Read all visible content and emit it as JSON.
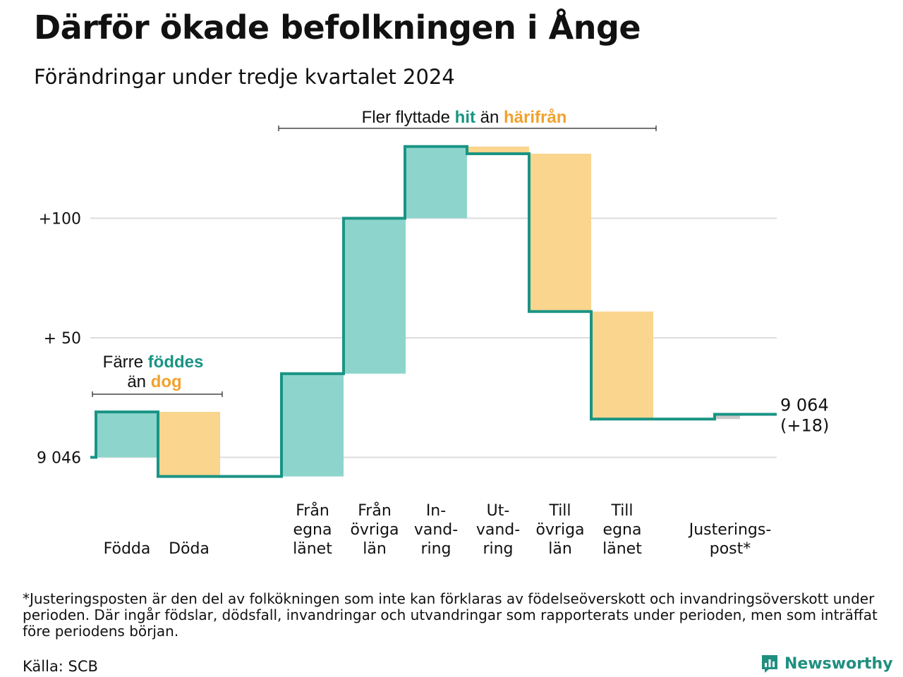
{
  "title": "Därför ökade befolkningen i Ånge",
  "subtitle": "Förändringar under tredje kvartalet 2024",
  "footnote": "*Justeringsposten är den del av folkökningen som inte kan förklaras av födelseöverskott och invandringsöverskott under perioden. Där ingår födslar, dödsfall, invandringar och utvandringar som rapporterats under perioden, men som inträffat före periodens början.",
  "source": "Källa: SCB",
  "brand": "Newsworthy",
  "colors": {
    "increase": "#8dd5cc",
    "decrease": "#f9d58d",
    "line": "#1a9484",
    "adjust": "#c8c8c8",
    "grid": "#dddddd",
    "teal_text": "#1a9484",
    "orange_text": "#f0a22e"
  },
  "annotations": {
    "natural": {
      "pre1": "Färre ",
      "hl1": "föddes",
      "pre2": "än ",
      "hl2": "dog"
    },
    "migration": {
      "pre1": "Fler flyttade ",
      "hl1": "hit",
      "pre2": " än ",
      "hl2": "härifrån"
    }
  },
  "chart_data": {
    "type": "waterfall",
    "base": 9046,
    "y_tick_labels": [
      "9 046",
      "+ 50",
      "+100"
    ],
    "y_ticks": [
      0,
      50,
      100
    ],
    "steps": [
      {
        "label_lines": [
          "Födda"
        ],
        "change": 19,
        "type": "increase"
      },
      {
        "label_lines": [
          "Döda"
        ],
        "change": -27,
        "type": "decrease"
      },
      {
        "label_lines": [
          "Från",
          "egna",
          "länet"
        ],
        "change": 43,
        "type": "increase"
      },
      {
        "label_lines": [
          "Från",
          "övriga",
          "län"
        ],
        "change": 65,
        "type": "increase"
      },
      {
        "label_lines": [
          "In-",
          "vand-",
          "ring"
        ],
        "change": 30,
        "type": "increase"
      },
      {
        "label_lines": [
          "Ut-",
          "vand-",
          "ring"
        ],
        "change": -3,
        "type": "decrease"
      },
      {
        "label_lines": [
          "Till",
          "övriga",
          "län"
        ],
        "change": -66,
        "type": "decrease"
      },
      {
        "label_lines": [
          "Till",
          "egna",
          "länet"
        ],
        "change": -45,
        "type": "decrease"
      },
      {
        "label_lines": [
          "Justerings-",
          "post*"
        ],
        "change": 2,
        "type": "adjust"
      }
    ],
    "end_total": "9 064",
    "end_change": "(+18)"
  }
}
